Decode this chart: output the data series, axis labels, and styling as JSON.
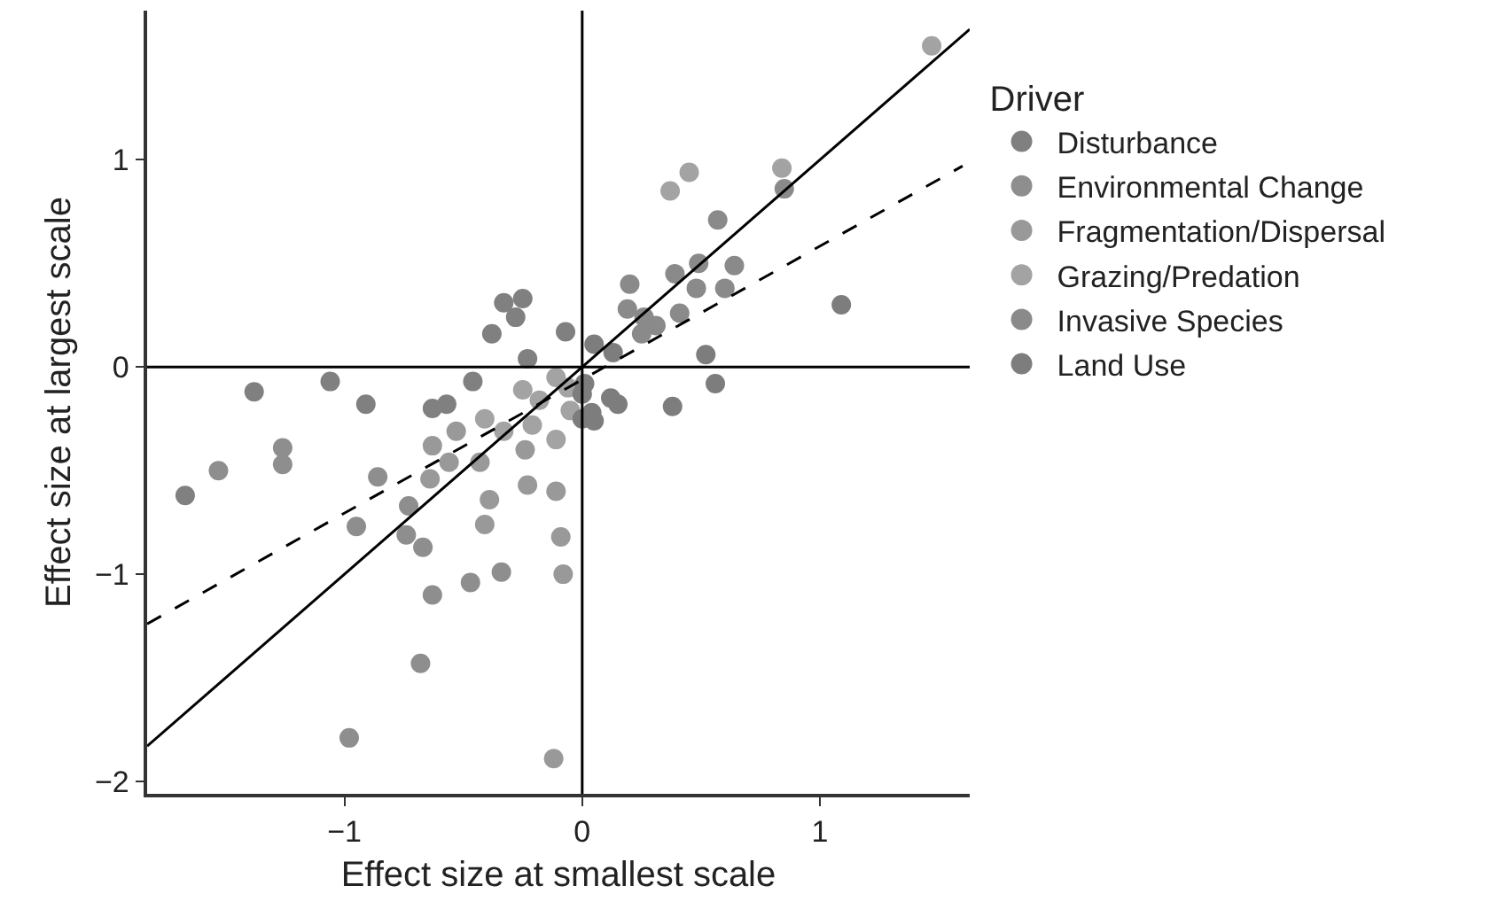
{
  "chart_data": {
    "type": "scatter",
    "xlabel": "Effect size at smallest scale",
    "ylabel": "Effect size at largest scale",
    "legend_title": "Driver",
    "xlim": [
      -1.83,
      1.63
    ],
    "ylim": [
      -2.06,
      1.72
    ],
    "xticks": [
      {
        "value": -1,
        "label": "−1"
      },
      0,
      1
    ],
    "yticks": [
      {
        "value": -2,
        "label": "−2"
      },
      {
        "value": -1,
        "label": "−1"
      },
      0,
      1
    ],
    "legend": "right",
    "marker": "circle",
    "series": [
      {
        "name": "Disturbance",
        "color": "#808080",
        "x": [
          -1.38,
          -1.06,
          -0.91,
          -0.38,
          -0.33,
          -0.25,
          -0.28,
          -0.07,
          -0.23,
          -0.46,
          -0.63,
          -0.57,
          -1.67
        ],
        "values": [
          -0.12,
          -0.07,
          -0.18,
          0.16,
          0.31,
          0.33,
          0.24,
          0.17,
          0.04,
          -0.07,
          -0.2,
          -0.18,
          -0.62
        ]
      },
      {
        "name": "Environmental Change",
        "color": "#8e8e8e",
        "x": [
          -1.53,
          -1.26,
          -1.26,
          -0.86,
          -0.95,
          -0.98,
          -0.73,
          -0.74,
          -0.67,
          -0.63,
          -0.68,
          -0.47,
          -0.34
        ],
        "values": [
          -0.5,
          -0.39,
          -0.47,
          -0.53,
          -0.77,
          -1.79,
          -0.67,
          -0.81,
          -0.87,
          -1.1,
          -1.43,
          -1.04,
          -0.99
        ]
      },
      {
        "name": "Fragmentation/Dispersal",
        "color": "#999999",
        "x": [
          -0.39,
          -0.41,
          -0.23,
          -0.11,
          -0.09,
          -0.08,
          -0.12,
          -0.24,
          -0.53,
          -0.63,
          -0.64,
          -0.56,
          -0.43
        ],
        "values": [
          -0.64,
          -0.76,
          -0.57,
          -0.6,
          -0.82,
          -1.0,
          -1.89,
          -0.4,
          -0.31,
          -0.38,
          -0.54,
          -0.46,
          -0.46
        ]
      },
      {
        "name": "Grazing/Predation",
        "color": "#a3a3a3",
        "x": [
          -0.41,
          -0.33,
          -0.25,
          -0.18,
          -0.21,
          -0.11,
          -0.11,
          -0.05,
          -0.06,
          1.47,
          0.45,
          0.37,
          0.84
        ],
        "values": [
          -0.25,
          -0.31,
          -0.11,
          -0.16,
          -0.28,
          -0.35,
          -0.05,
          -0.21,
          -0.1,
          1.55,
          0.94,
          0.85,
          0.96
        ]
      },
      {
        "name": "Invasive Species",
        "color": "#8a8a8a",
        "x": [
          0.85,
          0.57,
          0.49,
          0.64,
          0.39,
          0.48,
          0.6,
          0.2,
          0.19,
          0.26,
          0.31,
          0.25,
          0.41
        ],
        "values": [
          0.86,
          0.71,
          0.5,
          0.49,
          0.45,
          0.38,
          0.38,
          0.4,
          0.28,
          0.24,
          0.2,
          0.16,
          0.26
        ]
      },
      {
        "name": "Land Use",
        "color": "#7d7d7d",
        "x": [
          1.09,
          0.52,
          0.56,
          0.38,
          0.05,
          0.13,
          0.15,
          0.12,
          0.01,
          0.04,
          0.05,
          0.0,
          0.0
        ],
        "values": [
          0.3,
          0.06,
          -0.08,
          -0.19,
          0.11,
          0.07,
          -0.18,
          -0.15,
          -0.08,
          -0.22,
          -0.26,
          -0.25,
          -0.13
        ]
      },
      {
        "type": "line",
        "marker": "none",
        "color": "#000000",
        "line_style": "solid",
        "x": [
          0,
          0
        ],
        "values": [
          -2.06,
          1.72
        ]
      },
      {
        "type": "line",
        "marker": "none",
        "color": "#000000",
        "line_style": "solid",
        "x": [
          -1.83,
          1.63
        ],
        "values": [
          0,
          0
        ]
      },
      {
        "type": "line",
        "marker": "none",
        "color": "#000000",
        "line_style": "solid",
        "x": [
          -1.83,
          1.63
        ],
        "values": [
          -1.83,
          1.63
        ]
      },
      {
        "type": "line",
        "marker": "none",
        "color": "#000000",
        "line_style": "dashed",
        "x": [
          -1.83,
          1.6
        ],
        "values": [
          -1.24,
          0.97
        ]
      }
    ]
  }
}
